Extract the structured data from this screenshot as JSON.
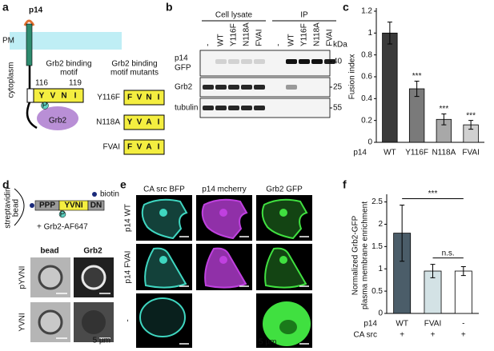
{
  "panel_labels": [
    "a",
    "b",
    "c",
    "d",
    "e",
    "f"
  ],
  "panel_a": {
    "protein": "p14",
    "membrane": "PM",
    "cytoplasm": "cytoplasm",
    "motif_title": [
      "Grb2 binding",
      "motif"
    ],
    "motif_start": "116",
    "motif_end": "119",
    "motif": [
      "Y",
      "V",
      "N",
      "I"
    ],
    "phospho": "P",
    "partner": "Grb2",
    "mutants_title": [
      "Grb2 binding",
      "motif mutants"
    ],
    "mutants": [
      {
        "name": "Y116F",
        "motif": [
          "F",
          "V",
          "N",
          "I"
        ],
        "highlight": [
          0
        ]
      },
      {
        "name": "N118A",
        "motif": [
          "Y",
          "V",
          "A",
          "I"
        ],
        "highlight": [
          2
        ]
      },
      {
        "name": "FVAI",
        "motif": [
          "F",
          "V",
          "A",
          "I"
        ],
        "highlight": [
          0,
          2
        ]
      }
    ]
  },
  "panel_b": {
    "groups": [
      "Cell lysate",
      "IP"
    ],
    "lanes": [
      "-",
      "WT",
      "Y116F",
      "N118A",
      "FVAI"
    ],
    "unit": "kDa",
    "rows": [
      {
        "label": [
          "p14",
          "GFP"
        ],
        "marker": "40"
      },
      {
        "label": [
          "Grb2"
        ],
        "marker": "25"
      },
      {
        "label": [
          "tubulin"
        ],
        "marker": "55"
      }
    ]
  },
  "panel_d": {
    "label": "biotin",
    "bead": [
      "streptavidin",
      "bead"
    ],
    "peptide": [
      "PPP",
      "YVNI",
      "DN"
    ],
    "phospho": "P",
    "reagent": "+ Grb2-AF647",
    "columns": [
      "bead",
      "Grb2"
    ],
    "rows": [
      "pYVNI",
      "YVNI"
    ],
    "scale": "5 µm"
  },
  "panel_e": {
    "columns": [
      "CA src BFP",
      "p14 mcherry",
      "Grb2 GFP"
    ],
    "rows": [
      "p14 WT",
      "p14 FVAI",
      "-"
    ],
    "scale": "5 µm"
  },
  "chart_data": [
    {
      "type": "bar",
      "ylabel": [
        "Fusion index"
      ],
      "x_label": "p14",
      "categories": [
        "WT",
        "Y116F",
        "N118A",
        "FVAI"
      ],
      "values": [
        1.0,
        0.49,
        0.21,
        0.16
      ],
      "errors": [
        0.1,
        0.07,
        0.05,
        0.04
      ],
      "colors": [
        "#3a3a3a",
        "#7a7a7a",
        "#a8a8a8",
        "#d0d0d0"
      ],
      "significance": [
        null,
        "***",
        "***",
        "***"
      ],
      "ylim": [
        0,
        1.2
      ],
      "yticks": [
        0,
        0.2,
        0.4,
        0.6,
        0.8,
        1,
        1.2
      ]
    },
    {
      "type": "bar",
      "ylabel": [
        "Normalized Grb2-GFP",
        "plasma membrane enrichment"
      ],
      "x_label": "p14",
      "categories": [
        "WT",
        "FVAI",
        "-"
      ],
      "condition": {
        "label": "CA src",
        "values": [
          "+",
          "+",
          "+"
        ]
      },
      "values": [
        1.8,
        0.95,
        0.95
      ],
      "errors": [
        0.63,
        0.15,
        0.1
      ],
      "colors": [
        "#4b5d69",
        "#d3e2e5",
        "#ffffff"
      ],
      "brackets": [
        {
          "text": "***",
          "span": [
            0,
            2
          ]
        },
        {
          "text": "n.s.",
          "span": [
            1,
            2
          ]
        }
      ],
      "ylim": [
        0,
        2.6
      ],
      "yticks": [
        0,
        0.5,
        1,
        1.5,
        2,
        2.5
      ]
    }
  ]
}
